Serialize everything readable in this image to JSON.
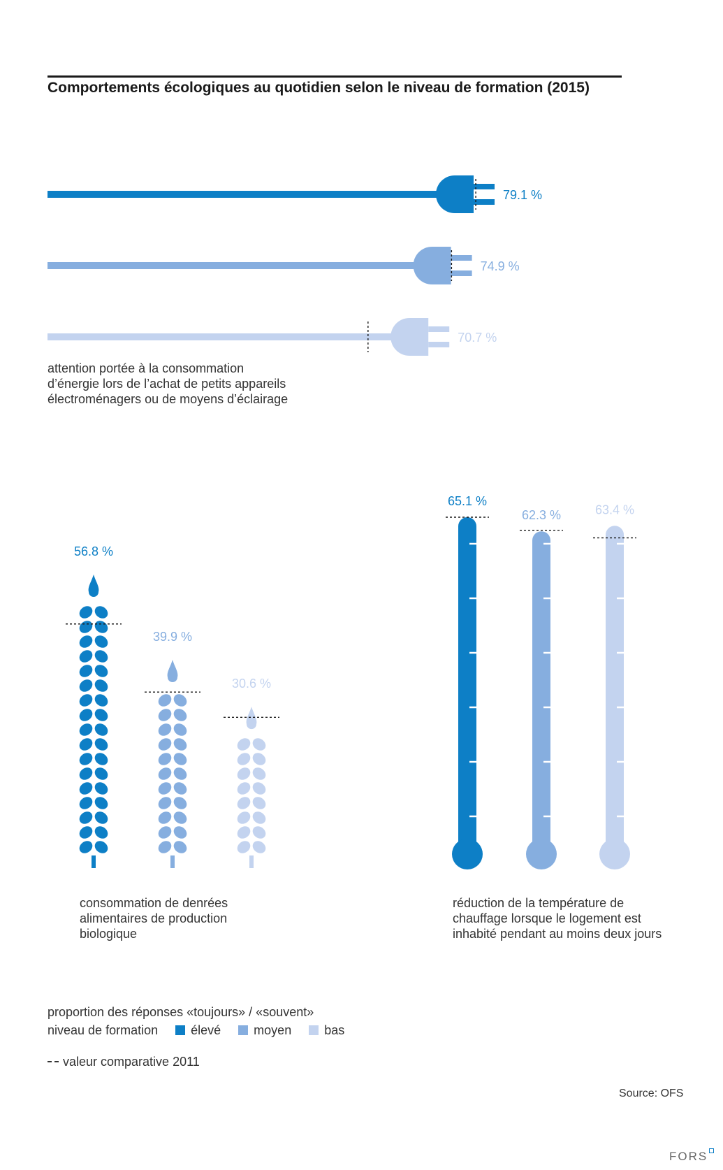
{
  "title": "Comportements écologiques au quotidien selon le niveau de formation (2015)",
  "colors": {
    "eleve": "#0d7fc6",
    "moyen": "#86aedf",
    "bas": "#c3d3ef",
    "text": "#333333"
  },
  "chart_data": [
    {
      "type": "bar",
      "icon": "plug-icon",
      "categories": [
        "élevé",
        "moyen",
        "bas"
      ],
      "values": [
        79.1,
        74.9,
        70.7
      ],
      "value_labels": [
        "79.1 %",
        "74.9 %",
        "70.7 %"
      ],
      "comparison_2011": [
        79.5,
        75.0,
        59.5
      ],
      "label_lines": [
        "attention portée à la consommation",
        "d’énergie lors de l’achat de petits appareils",
        "électroménagers ou de moyens d’éclairage"
      ]
    },
    {
      "type": "bar",
      "icon": "wheat-icon",
      "categories": [
        "élevé",
        "moyen",
        "bas"
      ],
      "values": [
        56.8,
        39.9,
        30.6
      ],
      "value_labels": [
        "56.8 %",
        "39.9 %",
        "30.6 %"
      ],
      "comparison_2011": [
        47.0,
        33.5,
        28.5
      ],
      "label_lines": [
        "consommation de denrées",
        "alimentaires de production",
        "biologique"
      ]
    },
    {
      "type": "bar",
      "icon": "thermometer-icon",
      "categories": [
        "élevé",
        "moyen",
        "bas"
      ],
      "values": [
        65.1,
        62.3,
        63.4
      ],
      "value_labels": [
        "65.1 %",
        "62.3 %",
        "63.4 %"
      ],
      "comparison_2011": [
        65.1,
        62.5,
        61.0
      ],
      "label_lines": [
        "réduction de la température de",
        "chauffage lorsque le logement est",
        "inhabité pendant au moins deux jours"
      ]
    }
  ],
  "legend": {
    "measure": "proportion des réponses «toujours» / «souvent»",
    "level_title": "niveau de formation",
    "items": [
      "élevé",
      "moyen",
      "bas"
    ],
    "comparison": "valeur comparative 2011"
  },
  "source": "Source: OFS",
  "logo": "FORS"
}
